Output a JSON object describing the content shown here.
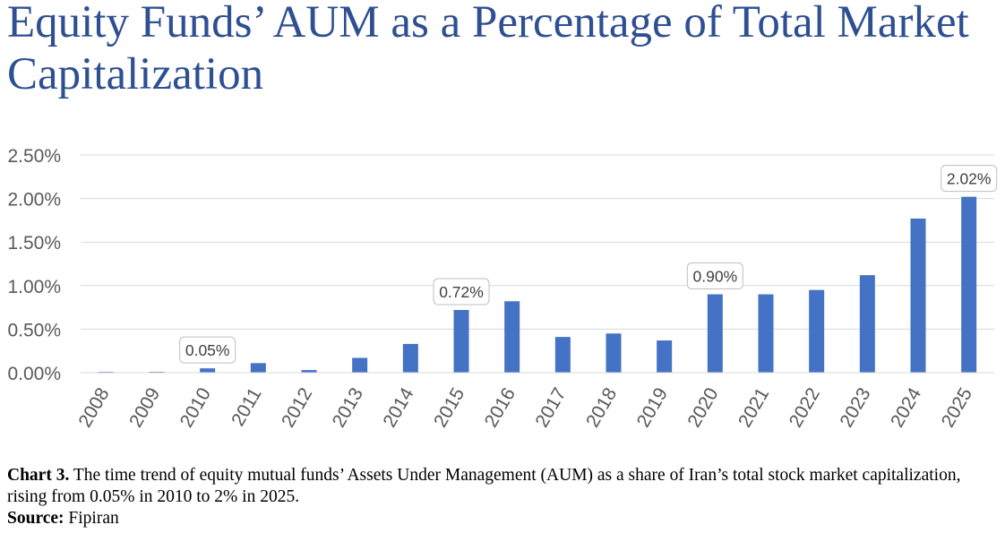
{
  "title": "Equity Funds’ AUM as a Percentage of Total Market Capitalization",
  "chart_data": {
    "type": "bar",
    "categories": [
      "2008",
      "2009",
      "2010",
      "2011",
      "2012",
      "2013",
      "2014",
      "2015",
      "2016",
      "2017",
      "2018",
      "2019",
      "2020",
      "2021",
      "2022",
      "2023",
      "2024",
      "2025"
    ],
    "values": [
      0.01,
      0.01,
      0.05,
      0.11,
      0.03,
      0.17,
      0.33,
      0.72,
      0.82,
      0.41,
      0.45,
      0.37,
      0.9,
      0.9,
      0.95,
      1.12,
      1.77,
      2.02
    ],
    "y_ticks": [
      "0.00%",
      "0.50%",
      "1.00%",
      "1.50%",
      "2.00%",
      "2.50%"
    ],
    "ylim": [
      0,
      2.5
    ],
    "unit": "%",
    "grid": true,
    "data_labels": [
      {
        "category": "2010",
        "text": "0.05%"
      },
      {
        "category": "2015",
        "text": "0.72%"
      },
      {
        "category": "2020",
        "text": "0.90%"
      },
      {
        "category": "2025",
        "text": "2.02%"
      }
    ],
    "bar_color": "#4472c4",
    "title_color": "#2e4f92"
  },
  "caption": {
    "label": "Chart 3.",
    "text": " The time trend of equity mutual funds’ Assets Under Management (AUM) as a share of Iran’s total stock market capitalization, rising from 0.05% in 2010 to 2% in 2025.",
    "source_label": "Source:",
    "source_text": " Fipiran"
  }
}
